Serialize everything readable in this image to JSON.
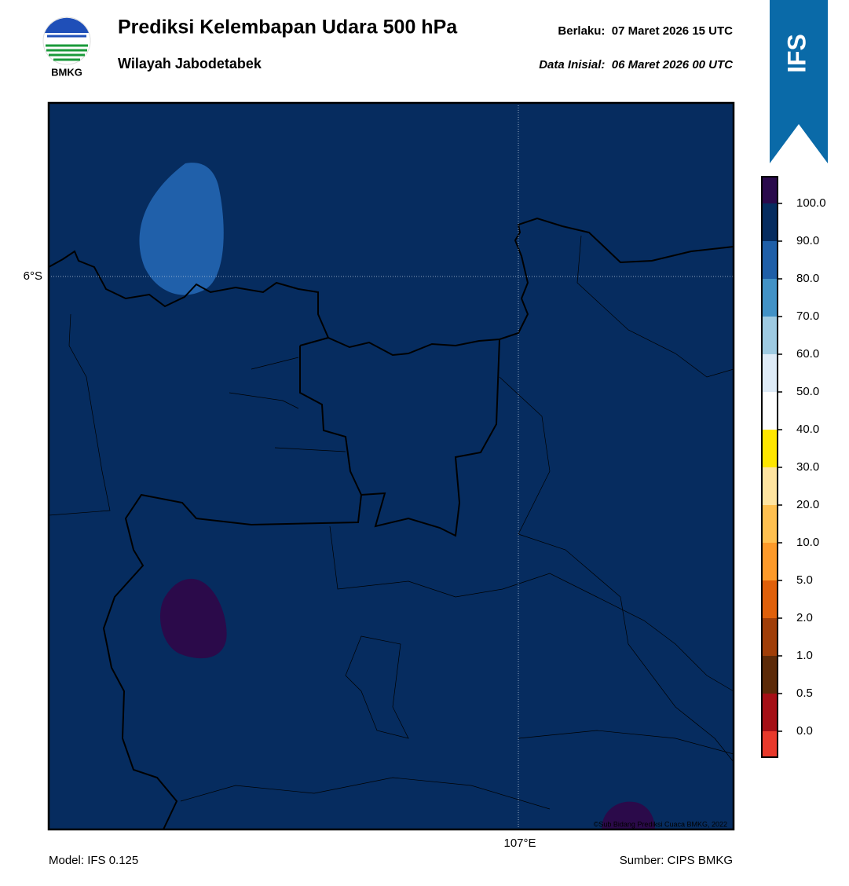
{
  "header": {
    "title": "Prediksi Kelembapan Udara 500 hPa",
    "subtitle": "Wilayah Jabodetabek",
    "valid": "Berlaku:  07 Maret 2026 15 UTC",
    "initial": "Data Inisial:  06 Maret 2026 00 UTC",
    "logo_text": "BMKG",
    "model_badge": "IFS"
  },
  "map": {
    "lat_label": "6°S",
    "lon_label": "107°E",
    "copyright": "©Sub Bidang Prediksi Cuaca BMKG, 2022"
  },
  "colorbar": {
    "labels": [
      "100.0",
      "90.0",
      "80.0",
      "70.0",
      "60.0",
      "50.0",
      "40.0",
      "30.0",
      "20.0",
      "10.0",
      "5.0",
      "2.0",
      "1.0",
      "0.5",
      "0.0"
    ],
    "colors": [
      "#2a0a4c",
      "#062c5f",
      "#1f5fa8",
      "#4292c6",
      "#9ecae1",
      "#deebf7",
      "#ffffff",
      "#ffe600",
      "#ffe4a0",
      "#ffc050",
      "#fd9a2a",
      "#e0600a",
      "#a03e08",
      "#5c2a08",
      "#a50f15",
      "#e8392b"
    ]
  },
  "footer": {
    "model": "Model: IFS 0.125",
    "source": "Sumber: CIPS BMKG"
  }
}
